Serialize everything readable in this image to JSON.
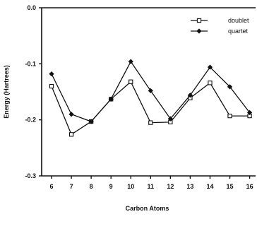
{
  "chart_data": {
    "type": "line",
    "xlabel": "Carbon  Atoms",
    "ylabel": "Energy   (Hartrees)",
    "x": [
      6,
      7,
      8,
      9,
      10,
      11,
      12,
      13,
      14,
      15,
      16
    ],
    "xlim": [
      5.5,
      16.3
    ],
    "ylim": [
      -0.3,
      0.0
    ],
    "yticks": [
      0.0,
      -0.1,
      -0.2,
      -0.3
    ],
    "ytick_labels": [
      "0.0",
      "-0.1",
      "-0.2",
      "-0.3"
    ],
    "grid": false,
    "legend_position": "top-right",
    "series": [
      {
        "name": "doublet",
        "marker": "open-square",
        "color": "#111111",
        "values": [
          -0.14,
          -0.226,
          -0.203,
          -0.163,
          -0.132,
          -0.205,
          -0.204,
          -0.161,
          -0.134,
          -0.193,
          -0.193
        ]
      },
      {
        "name": "quartet",
        "marker": "filled-diamond",
        "color": "#111111",
        "values": [
          -0.118,
          -0.19,
          -0.203,
          -0.163,
          -0.096,
          -0.148,
          -0.198,
          -0.156,
          -0.106,
          -0.141,
          -0.187
        ]
      }
    ]
  }
}
